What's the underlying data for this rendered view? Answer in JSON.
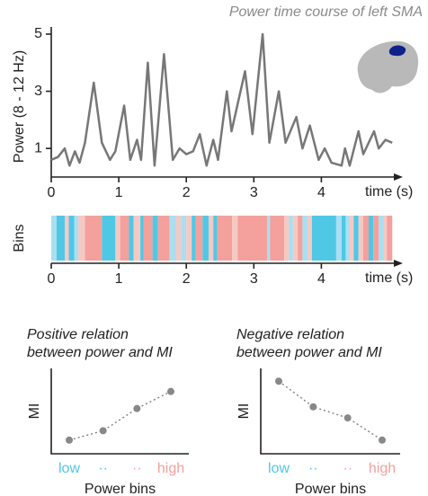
{
  "chart_data": [
    {
      "type": "line",
      "title": "Power time course of left SMA",
      "ylabel": "Power (8 - 12 Hz)",
      "xlabel": "time (s)",
      "color": "#777777",
      "x": [
        0,
        0.1,
        0.2,
        0.27,
        0.35,
        0.42,
        0.5,
        0.63,
        0.75,
        0.87,
        0.95,
        1.08,
        1.17,
        1.27,
        1.33,
        1.43,
        1.53,
        1.67,
        1.8,
        1.9,
        2.0,
        2.1,
        2.2,
        2.3,
        2.4,
        2.47,
        2.6,
        2.67,
        2.87,
        2.98,
        3.13,
        3.23,
        3.37,
        3.47,
        3.63,
        3.72,
        3.83,
        3.96,
        4.05,
        4.15,
        4.3,
        4.35,
        4.42,
        4.55,
        4.62,
        4.78,
        4.85,
        4.95,
        5.05
      ],
      "values": [
        0.6,
        0.7,
        1.0,
        0.4,
        0.9,
        0.5,
        1.2,
        3.3,
        1.2,
        0.6,
        0.9,
        2.5,
        0.6,
        1.3,
        0.6,
        4.0,
        0.4,
        4.3,
        0.6,
        1.0,
        0.8,
        0.9,
        1.5,
        0.4,
        1.3,
        0.6,
        3.0,
        1.6,
        3.7,
        1.5,
        5.0,
        1.2,
        3.0,
        1.2,
        2.1,
        1.0,
        1.8,
        0.6,
        1.0,
        0.5,
        0.4,
        1.0,
        0.4,
        1.6,
        0.8,
        1.6,
        1.0,
        1.3,
        1.2
      ],
      "xlim": [
        0,
        5.1
      ],
      "ylim": [
        0,
        5.25
      ],
      "xticks": [
        0,
        1,
        2,
        3,
        4
      ],
      "yticks": [
        1,
        3,
        5
      ]
    },
    {
      "type": "strip",
      "ylabel": "Bins",
      "xlabel": "time (s)",
      "colors": [
        "#4fc8e6",
        "#a9dff0",
        "#f5c9c3",
        "#f4a09c"
      ],
      "bins": [
        0.0,
        0.08,
        0.2,
        0.26,
        0.34,
        0.4,
        0.5,
        0.75,
        0.95,
        1.02,
        1.15,
        1.22,
        1.32,
        1.37,
        1.5,
        1.58,
        1.75,
        1.85,
        1.92,
        2.0,
        2.08,
        2.14,
        2.24,
        2.33,
        2.4,
        2.46,
        2.68,
        2.76,
        3.2,
        3.24,
        3.45,
        3.52,
        3.58,
        3.65,
        3.72,
        3.8,
        3.86,
        4.22,
        4.3,
        4.36,
        4.42,
        4.48,
        4.55,
        4.62,
        4.7,
        4.77,
        4.85,
        4.92,
        4.97,
        5.05
      ],
      "values": [
        2,
        1,
        3,
        1,
        2,
        3,
        4,
        1,
        3,
        4,
        1,
        3,
        1,
        4,
        1,
        4,
        2,
        3,
        2,
        3,
        1,
        4,
        1,
        3,
        1,
        4,
        3,
        4,
        2,
        4,
        3,
        2,
        3,
        4,
        2,
        3,
        1,
        2,
        1,
        2,
        3,
        1,
        3,
        4,
        1,
        4,
        2,
        3,
        4
      ],
      "xlim": [
        0,
        5.1
      ],
      "xticks": [
        0,
        1,
        2,
        3,
        4
      ]
    },
    {
      "type": "category-line",
      "title": [
        "Positive relation",
        "between power and MI"
      ],
      "ylabel": "MI",
      "xlabel": "Power bins",
      "categories": [
        "low",
        "··",
        "··",
        "high"
      ],
      "category_colors": [
        "#4fc8e6",
        "#4fc8e6",
        "#f4a09c",
        "#f4a09c"
      ],
      "values": [
        0.16,
        0.27,
        0.53,
        0.73
      ],
      "ylim": [
        0,
        1
      ],
      "color": "#888888"
    },
    {
      "type": "category-line",
      "title": [
        "Negative relation",
        "between power and MI"
      ],
      "ylabel": "MI",
      "xlabel": "Power bins",
      "categories": [
        "low",
        "··",
        "··",
        "high"
      ],
      "category_colors": [
        "#4fc8e6",
        "#4fc8e6",
        "#f4a09c",
        "#f4a09c"
      ],
      "values": [
        0.85,
        0.55,
        0.42,
        0.16
      ],
      "ylim": [
        0,
        1
      ],
      "color": "#888888"
    }
  ]
}
